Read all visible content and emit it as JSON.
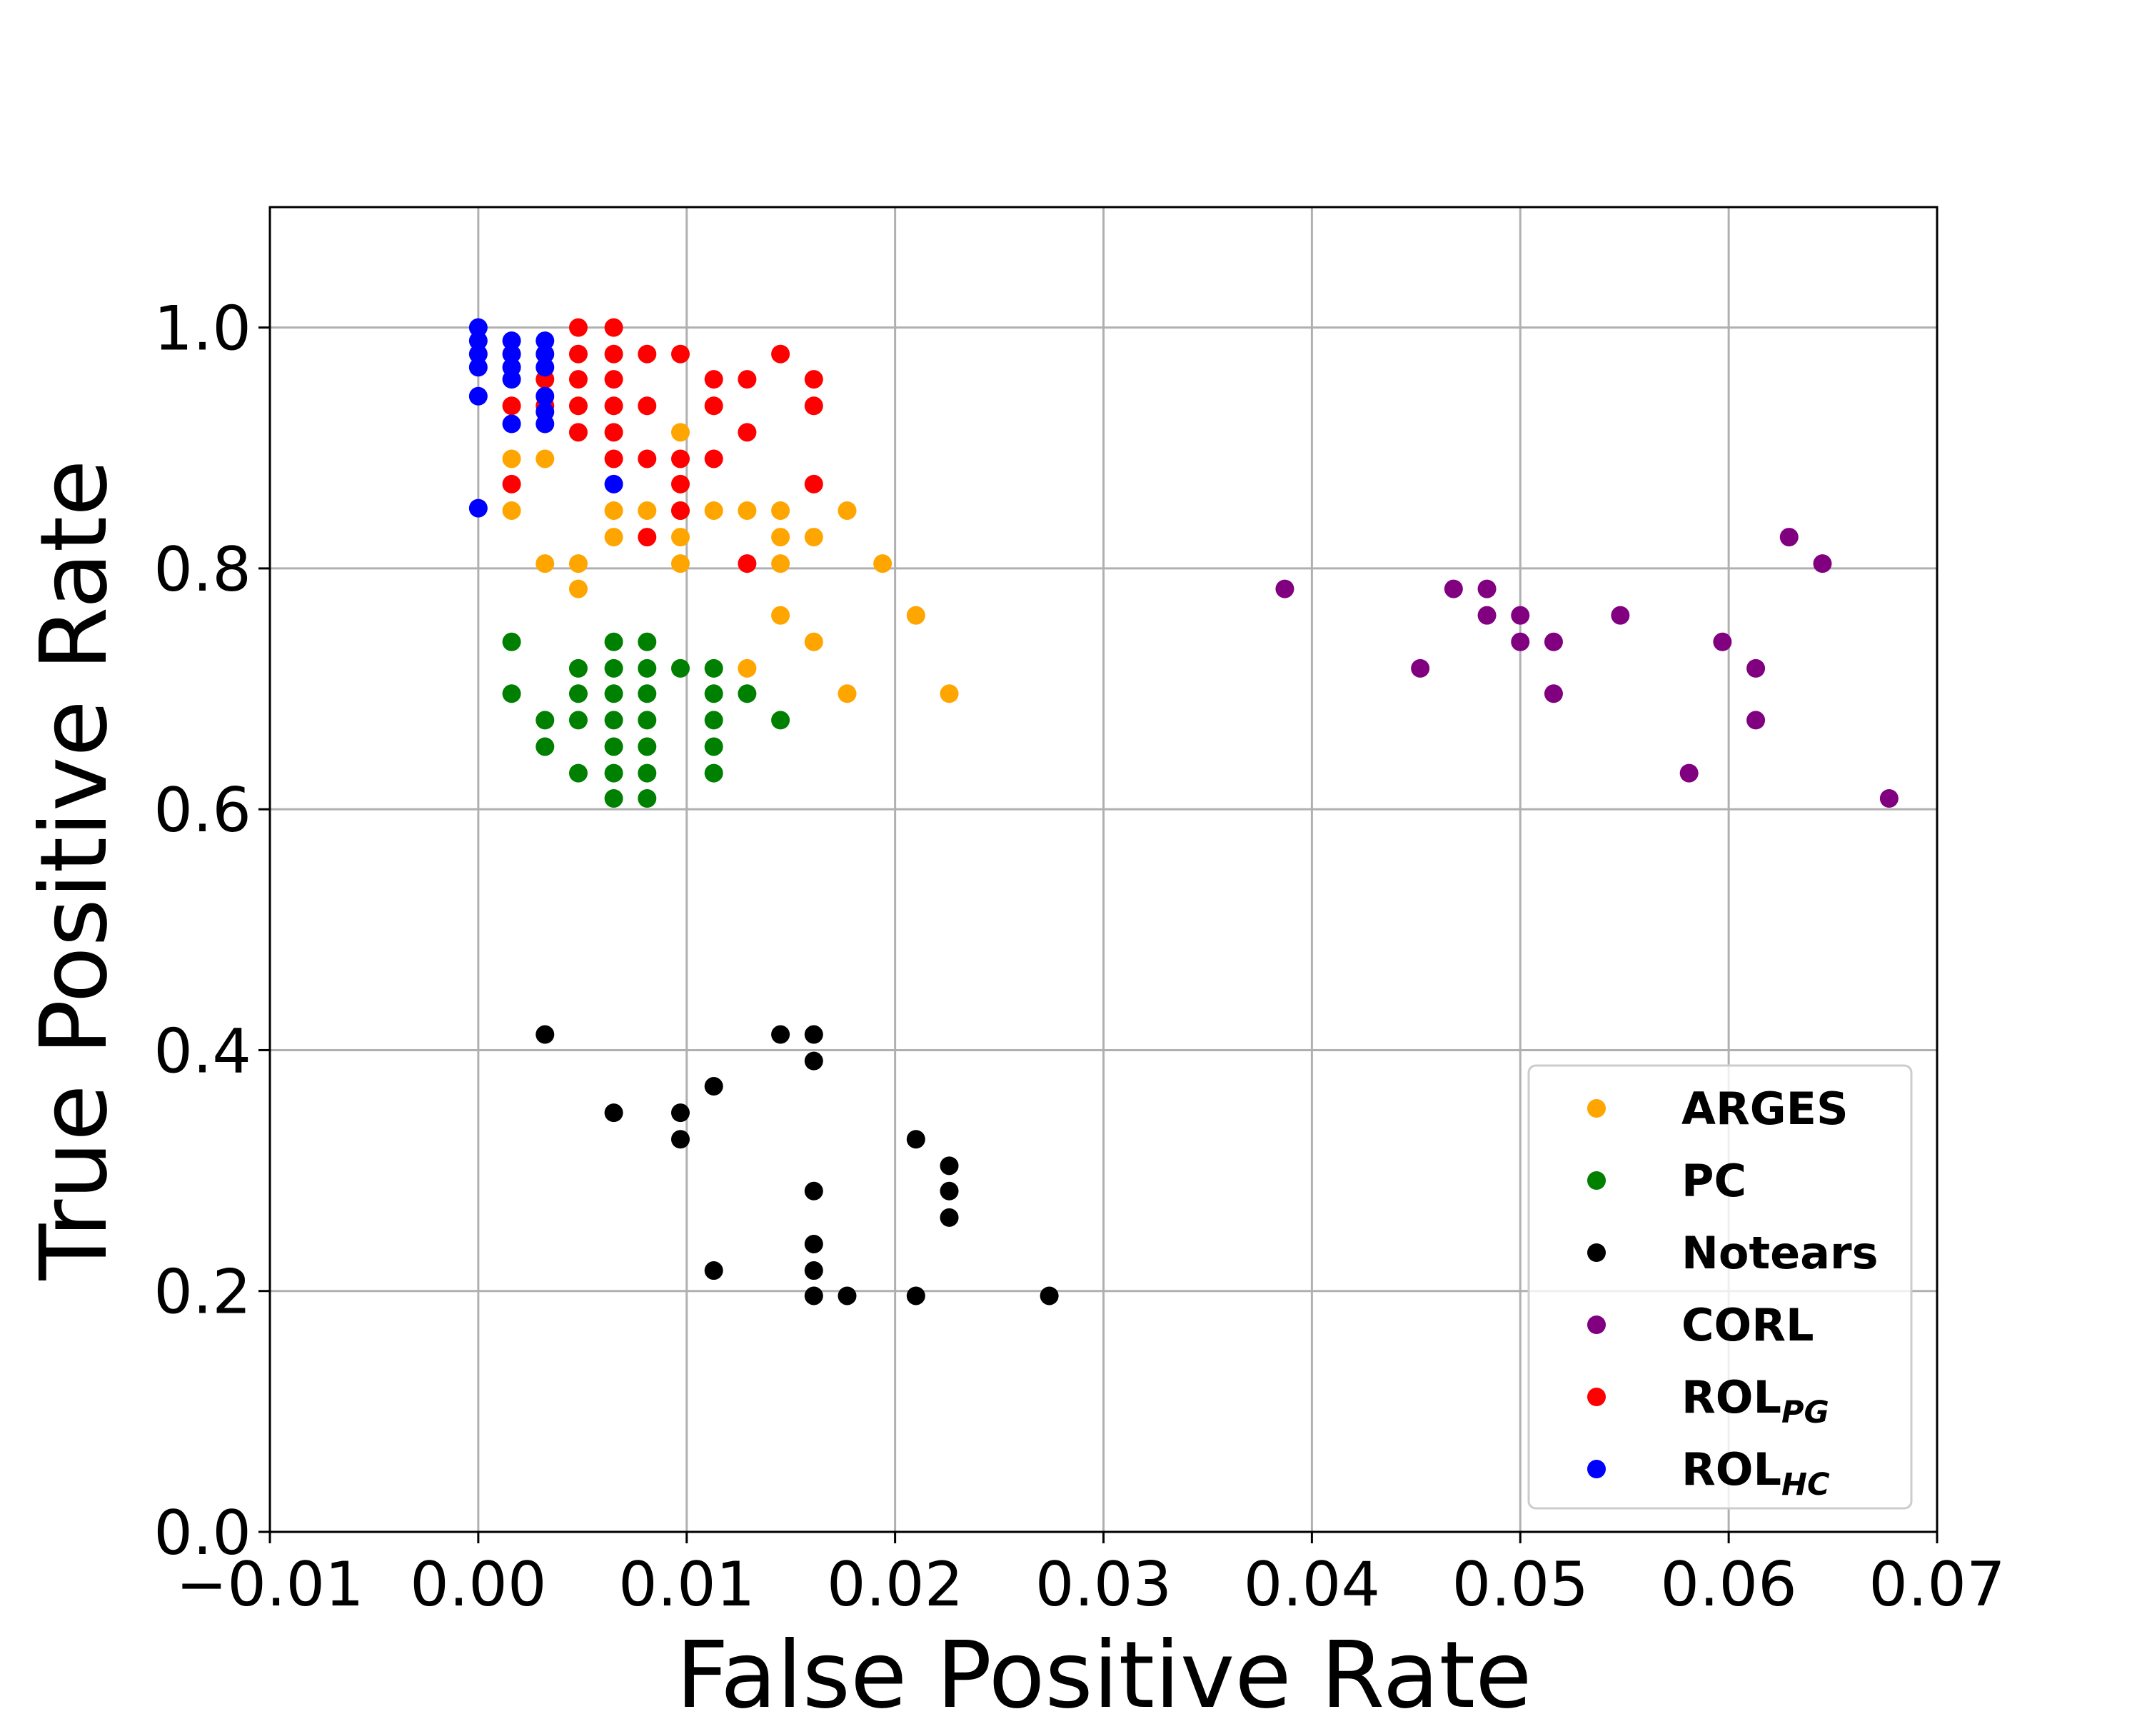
{
  "chart_data": {
    "type": "scatter",
    "title": "",
    "xlabel": "False Positive Rate",
    "ylabel": "True Positive Rate",
    "xlim": [
      -0.01,
      0.07
    ],
    "ylim": [
      0.0,
      1.1
    ],
    "grid": true,
    "legend_position": "lower-right",
    "xticks": [
      -0.01,
      0.0,
      0.01,
      0.02,
      0.03,
      0.04,
      0.05,
      0.06,
      0.07
    ],
    "xtick_labels": [
      "−0.01",
      "0.00",
      "0.01",
      "0.02",
      "0.03",
      "0.04",
      "0.05",
      "0.06",
      "0.07"
    ],
    "yticks": [
      0.0,
      0.2,
      0.4,
      0.6,
      0.8,
      1.0
    ],
    "ytick_labels": [
      "0.0",
      "0.2",
      "0.4",
      "0.6",
      "0.8",
      "1.0"
    ],
    "series": [
      {
        "name": "ARGES",
        "label_main": "ARGES",
        "label_sub": "",
        "color": "#FFA500",
        "points": [
          [
            0.0016,
            0.891
          ],
          [
            0.0032,
            0.891
          ],
          [
            0.0016,
            0.848
          ],
          [
            0.0032,
            0.804
          ],
          [
            0.0048,
            0.804
          ],
          [
            0.0048,
            0.783
          ],
          [
            0.0065,
            0.848
          ],
          [
            0.0065,
            0.826
          ],
          [
            0.0081,
            0.848
          ],
          [
            0.0097,
            0.913
          ],
          [
            0.0097,
            0.848
          ],
          [
            0.0097,
            0.826
          ],
          [
            0.0097,
            0.804
          ],
          [
            0.0113,
            0.848
          ],
          [
            0.0129,
            0.848
          ],
          [
            0.0145,
            0.848
          ],
          [
            0.0145,
            0.826
          ],
          [
            0.0145,
            0.804
          ],
          [
            0.0161,
            0.826
          ],
          [
            0.0177,
            0.848
          ],
          [
            0.0194,
            0.804
          ],
          [
            0.0145,
            0.761
          ],
          [
            0.0161,
            0.739
          ],
          [
            0.021,
            0.761
          ],
          [
            0.0129,
            0.717
          ],
          [
            0.0177,
            0.696
          ],
          [
            0.0226,
            0.696
          ]
        ]
      },
      {
        "name": "PC",
        "label_main": "PC",
        "label_sub": "",
        "color": "#008000",
        "points": [
          [
            0.0016,
            0.739
          ],
          [
            0.0016,
            0.696
          ],
          [
            0.0032,
            0.674
          ],
          [
            0.0032,
            0.652
          ],
          [
            0.0048,
            0.717
          ],
          [
            0.0048,
            0.696
          ],
          [
            0.0048,
            0.674
          ],
          [
            0.0048,
            0.63
          ],
          [
            0.0065,
            0.739
          ],
          [
            0.0065,
            0.717
          ],
          [
            0.0065,
            0.696
          ],
          [
            0.0065,
            0.674
          ],
          [
            0.0065,
            0.652
          ],
          [
            0.0065,
            0.63
          ],
          [
            0.0065,
            0.609
          ],
          [
            0.0081,
            0.739
          ],
          [
            0.0081,
            0.717
          ],
          [
            0.0081,
            0.696
          ],
          [
            0.0081,
            0.674
          ],
          [
            0.0081,
            0.652
          ],
          [
            0.0081,
            0.63
          ],
          [
            0.0081,
            0.609
          ],
          [
            0.0097,
            0.717
          ],
          [
            0.0113,
            0.717
          ],
          [
            0.0113,
            0.696
          ],
          [
            0.0113,
            0.674
          ],
          [
            0.0113,
            0.652
          ],
          [
            0.0113,
            0.63
          ],
          [
            0.0129,
            0.696
          ],
          [
            0.0145,
            0.674
          ]
        ]
      },
      {
        "name": "Notears",
        "label_main": "Notears",
        "label_sub": "",
        "color": "#000000",
        "points": [
          [
            0.0032,
            0.413
          ],
          [
            0.0065,
            0.348
          ],
          [
            0.0097,
            0.348
          ],
          [
            0.0097,
            0.326
          ],
          [
            0.0113,
            0.37
          ],
          [
            0.0113,
            0.217
          ],
          [
            0.0145,
            0.413
          ],
          [
            0.0161,
            0.413
          ],
          [
            0.0161,
            0.391
          ],
          [
            0.0161,
            0.283
          ],
          [
            0.0161,
            0.239
          ],
          [
            0.0161,
            0.217
          ],
          [
            0.0161,
            0.196
          ],
          [
            0.0177,
            0.196
          ],
          [
            0.021,
            0.326
          ],
          [
            0.021,
            0.196
          ],
          [
            0.0226,
            0.304
          ],
          [
            0.0226,
            0.283
          ],
          [
            0.0226,
            0.261
          ],
          [
            0.0274,
            0.196
          ]
        ]
      },
      {
        "name": "CORL",
        "label_main": "CORL",
        "label_sub": "",
        "color": "#800080",
        "points": [
          [
            0.0387,
            0.783
          ],
          [
            0.0452,
            0.717
          ],
          [
            0.0468,
            0.783
          ],
          [
            0.0484,
            0.783
          ],
          [
            0.0484,
            0.761
          ],
          [
            0.05,
            0.761
          ],
          [
            0.05,
            0.739
          ],
          [
            0.0516,
            0.739
          ],
          [
            0.0516,
            0.696
          ],
          [
            0.0548,
            0.761
          ],
          [
            0.0581,
            0.63
          ],
          [
            0.0597,
            0.739
          ],
          [
            0.0613,
            0.717
          ],
          [
            0.0613,
            0.674
          ],
          [
            0.0629,
            0.826
          ],
          [
            0.0645,
            0.804
          ],
          [
            0.0677,
            0.609
          ]
        ]
      },
      {
        "name": "ROL_PG",
        "label_main": "ROL",
        "label_sub": "PG",
        "color": "#FF0000",
        "points": [
          [
            0.0016,
            0.935
          ],
          [
            0.0016,
            0.87
          ],
          [
            0.0032,
            0.957
          ],
          [
            0.0032,
            0.935
          ],
          [
            0.0048,
            1.0
          ],
          [
            0.0048,
            0.978
          ],
          [
            0.0048,
            0.957
          ],
          [
            0.0048,
            0.935
          ],
          [
            0.0048,
            0.913
          ],
          [
            0.0065,
            1.0
          ],
          [
            0.0065,
            0.978
          ],
          [
            0.0065,
            0.957
          ],
          [
            0.0065,
            0.935
          ],
          [
            0.0065,
            0.913
          ],
          [
            0.0065,
            0.891
          ],
          [
            0.0081,
            0.978
          ],
          [
            0.0081,
            0.935
          ],
          [
            0.0081,
            0.891
          ],
          [
            0.0081,
            0.826
          ],
          [
            0.0097,
            0.978
          ],
          [
            0.0097,
            0.891
          ],
          [
            0.0097,
            0.87
          ],
          [
            0.0097,
            0.848
          ],
          [
            0.0113,
            0.957
          ],
          [
            0.0113,
            0.935
          ],
          [
            0.0113,
            0.891
          ],
          [
            0.0129,
            0.957
          ],
          [
            0.0129,
            0.913
          ],
          [
            0.0129,
            0.804
          ],
          [
            0.0145,
            0.978
          ],
          [
            0.0161,
            0.957
          ],
          [
            0.0161,
            0.935
          ],
          [
            0.0161,
            0.87
          ]
        ]
      },
      {
        "name": "ROL_HC",
        "label_main": "ROL",
        "label_sub": "HC",
        "color": "#0000FF",
        "points": [
          [
            0.0,
            1.0
          ],
          [
            0.0,
            0.989
          ],
          [
            0.0,
            0.978
          ],
          [
            0.0,
            0.967
          ],
          [
            0.0,
            0.943
          ],
          [
            0.0,
            0.85
          ],
          [
            0.0016,
            0.989
          ],
          [
            0.0016,
            0.978
          ],
          [
            0.0016,
            0.967
          ],
          [
            0.0016,
            0.957
          ],
          [
            0.0016,
            0.92
          ],
          [
            0.0032,
            0.989
          ],
          [
            0.0032,
            0.978
          ],
          [
            0.0032,
            0.967
          ],
          [
            0.0032,
            0.943
          ],
          [
            0.0032,
            0.93
          ],
          [
            0.0032,
            0.92
          ],
          [
            0.0065,
            0.87
          ]
        ]
      }
    ]
  }
}
